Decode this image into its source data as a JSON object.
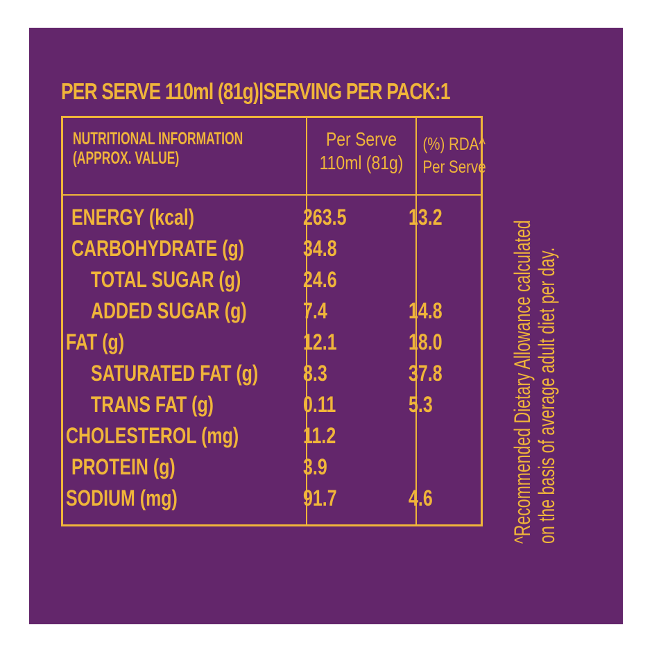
{
  "label": {
    "heading": "PER SERVE 110ml (81g)|SERVING PER PACK:1",
    "header": {
      "nutrition_line1": "NUTRITIONAL INFORMATION",
      "nutrition_line2": "(APPROX. VALUE)",
      "serve_line1": "Per Serve",
      "serve_line2": "110ml (81g)",
      "rda_line1": "(%) RDA^",
      "rda_line2": "Per Serve"
    },
    "rows": [
      {
        "name": "ENERGY (kcal)",
        "value": "263.5",
        "rda": "13.2"
      },
      {
        "name": "CARBOHYDRATE (g)",
        "value": "34.8",
        "rda": ""
      },
      {
        "name": "TOTAL SUGAR (g)",
        "value": "24.6",
        "rda": ""
      },
      {
        "name": "ADDED SUGAR (g)",
        "value": "7.4",
        "rda": "14.8"
      },
      {
        "name": "FAT (g)",
        "value": "12.1",
        "rda": "18.0"
      },
      {
        "name": "SATURATED FAT (g)",
        "value": "8.3",
        "rda": "37.8"
      },
      {
        "name": "TRANS FAT (g)",
        "value": "0.11",
        "rda": "5.3"
      },
      {
        "name": "CHOLESTEROL (mg)",
        "value": "11.2",
        "rda": ""
      },
      {
        "name": "PROTEIN (g)",
        "value": "3.9",
        "rda": ""
      },
      {
        "name": "SODIUM (mg)",
        "value": "91.7",
        "rda": "4.6"
      }
    ],
    "footnote_line1": "^Recommended Dietary Allowance calculated",
    "footnote_line2": "on the basis of average adult diet per day."
  },
  "colors": {
    "background": "#63266b",
    "ink": "#f0b53a"
  }
}
